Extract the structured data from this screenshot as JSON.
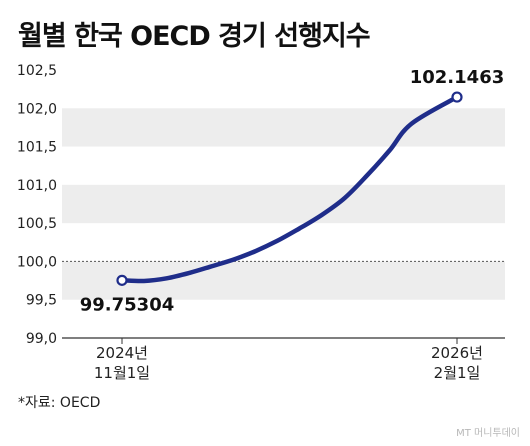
{
  "title": "월별 한국 OECD 경기 선행지수",
  "source": "*자료: OECD",
  "credit": "MT 머니투데이",
  "chart_data": {
    "type": "line",
    "title": "월별 한국 OECD 경기 선행지수",
    "y_ticks": [
      "102,5",
      "102,0",
      "101,5",
      "101,0",
      "100,5",
      "100,0",
      "99,5",
      "99,0"
    ],
    "ylim": [
      99.0,
      102.5
    ],
    "x_ticks": [
      {
        "line1": "2024년",
        "line2": "11월1일"
      },
      {
        "line1": "2026년",
        "line2": "2월1일"
      }
    ],
    "series": [
      {
        "color": "#1f2d8a",
        "points": [
          {
            "x": "2024-11-01",
            "y": 99.75304
          },
          {
            "x": "2024-12-01",
            "y": 99.745
          },
          {
            "x": "2025-01-01",
            "y": 99.78
          },
          {
            "x": "2025-02-01",
            "y": 99.85
          },
          {
            "x": "2025-03-01",
            "y": 99.93
          },
          {
            "x": "2025-04-01",
            "y": 100.02
          },
          {
            "x": "2025-05-01",
            "y": 100.13
          },
          {
            "x": "2025-06-01",
            "y": 100.27
          },
          {
            "x": "2025-07-01",
            "y": 100.43
          },
          {
            "x": "2025-08-01",
            "y": 100.61
          },
          {
            "x": "2025-09-01",
            "y": 100.83
          },
          {
            "x": "2025-10-01",
            "y": 101.12
          },
          {
            "x": "2025-11-01",
            "y": 101.45
          },
          {
            "x": "2025-12-01",
            "y": 101.8
          },
          {
            "x": "2026-02-01",
            "y": 102.1463
          }
        ]
      }
    ],
    "annotations": [
      {
        "x": "2024-11-01",
        "y": 99.75304,
        "label": "99.75304"
      },
      {
        "x": "2026-02-01",
        "y": 102.1463,
        "label": "102.1463"
      }
    ],
    "reference_line": 100.0,
    "grid": "alternating-bands"
  }
}
